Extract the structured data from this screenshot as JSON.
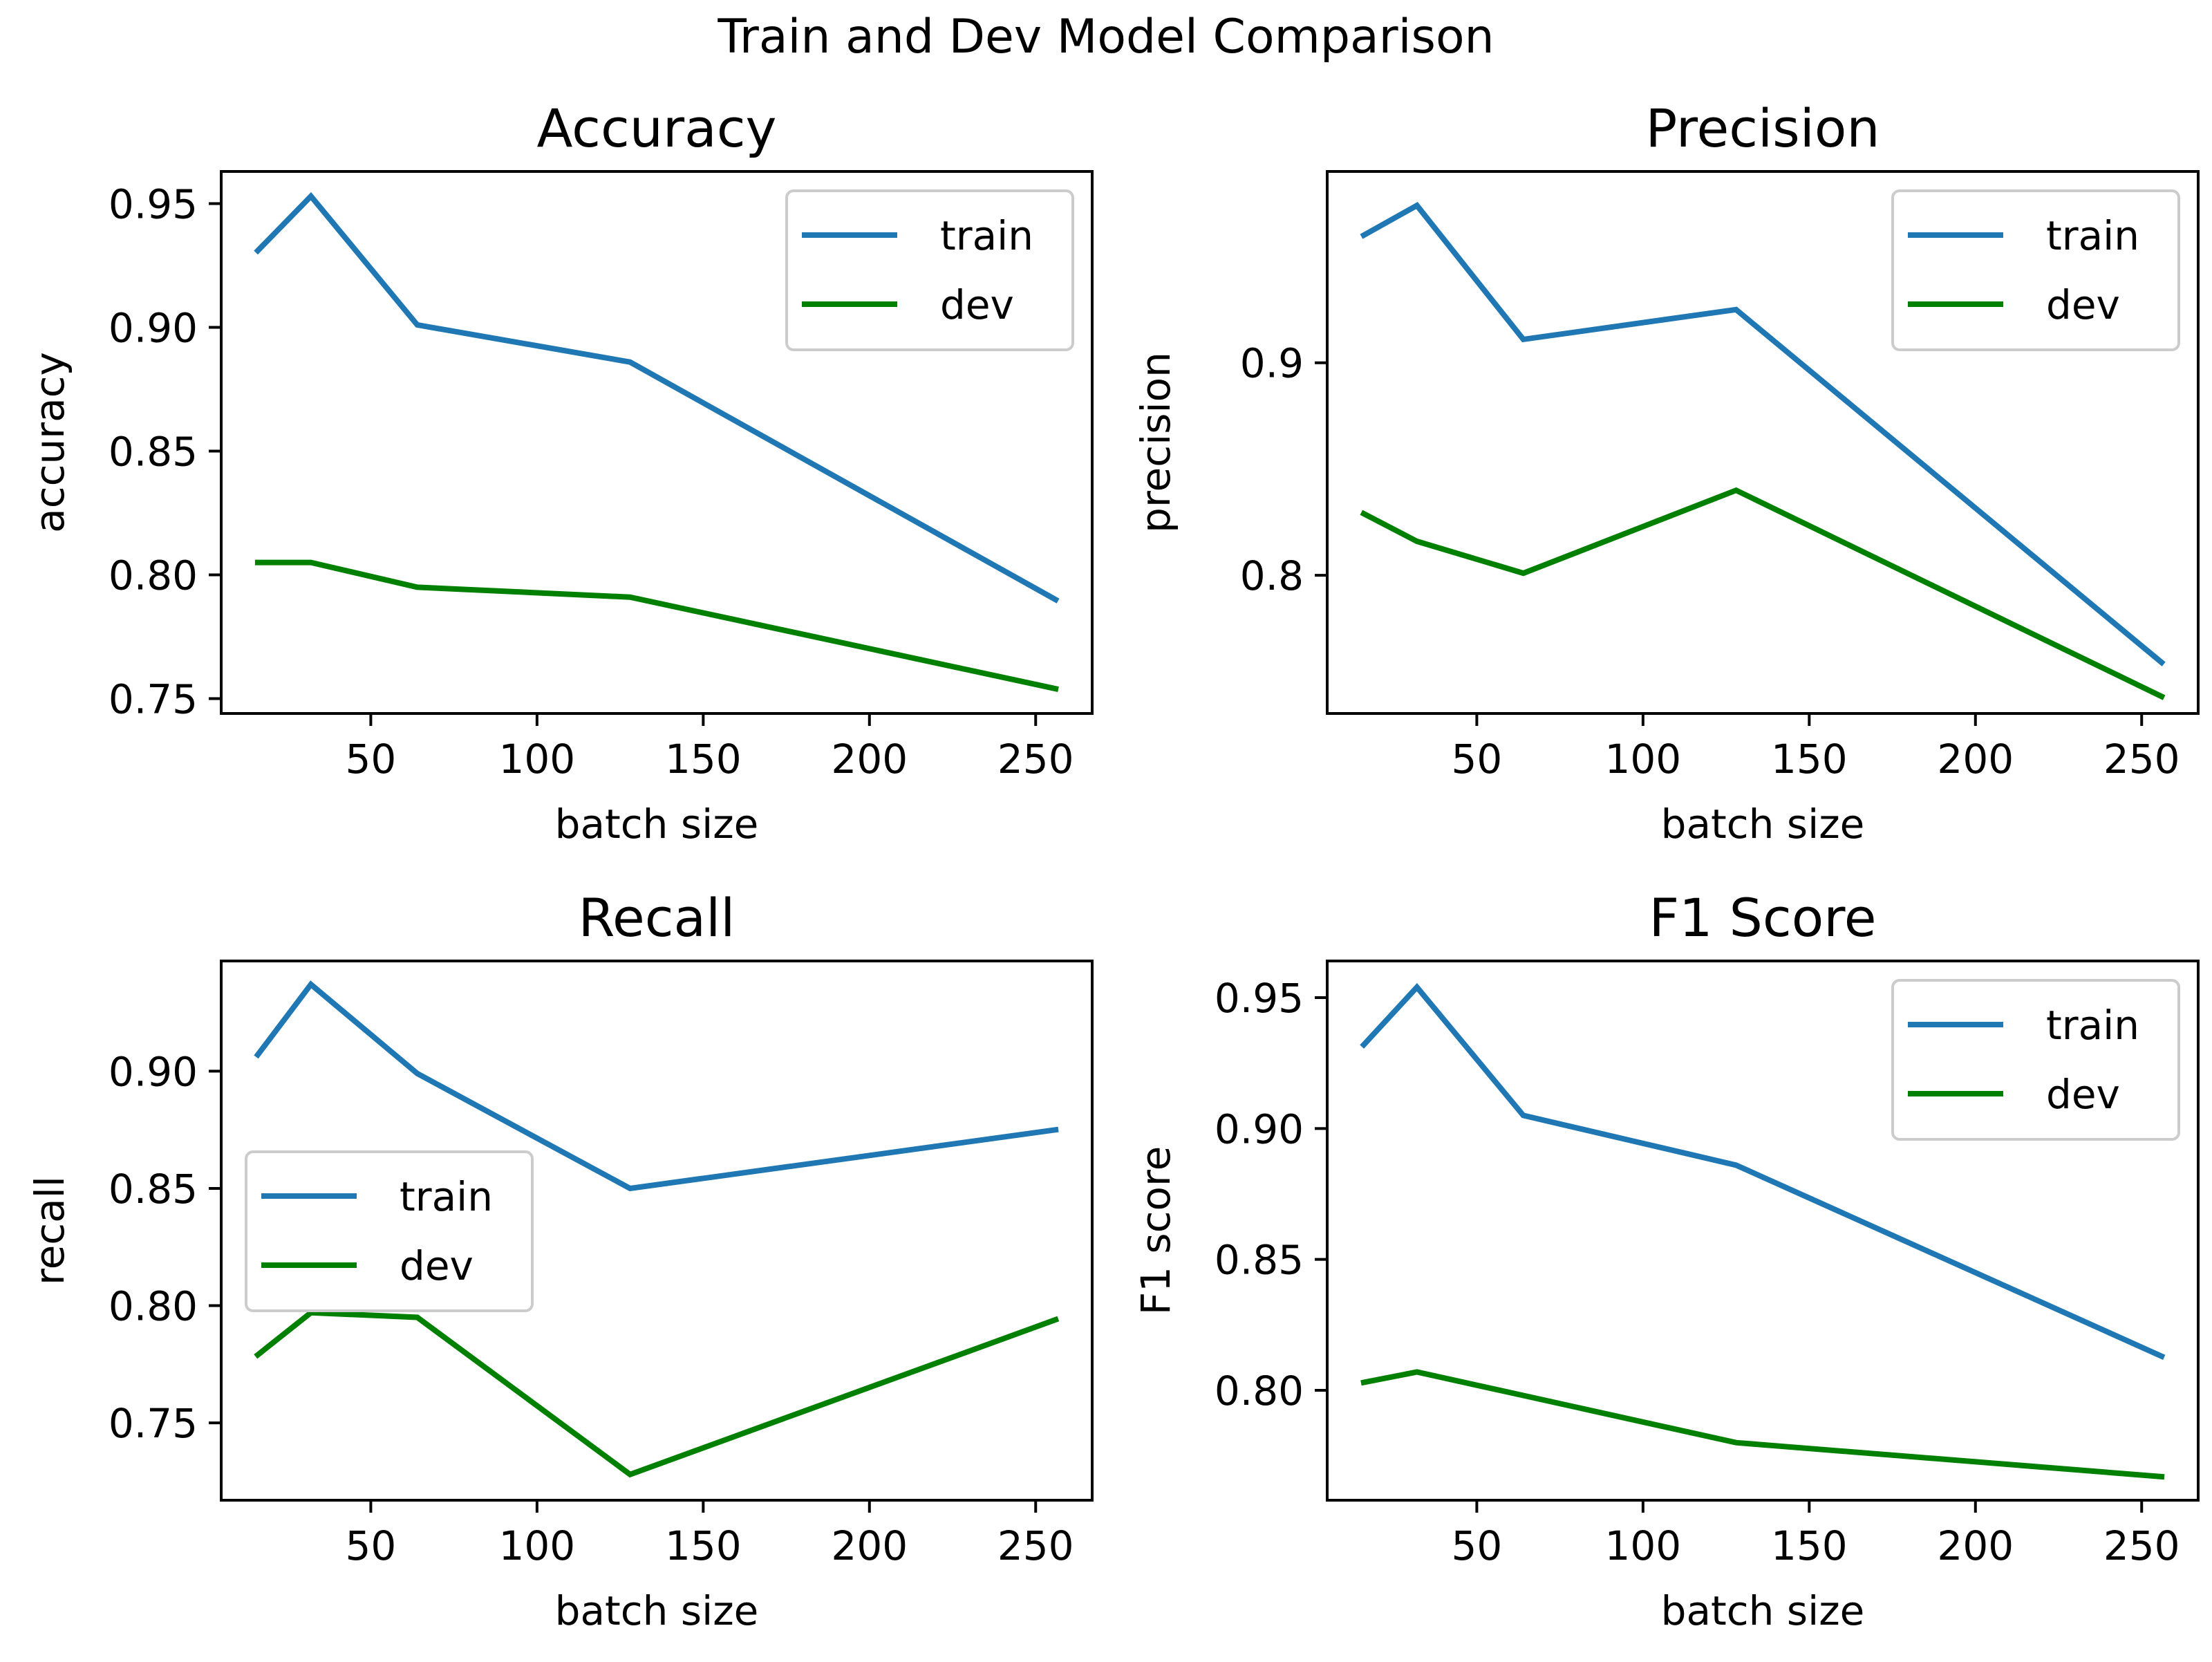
{
  "figure_title": "Train and Dev Model Comparison",
  "chart_data": [
    {
      "type": "line",
      "title": "Accuracy",
      "xlabel": "batch size",
      "ylabel": "accuracy",
      "x": [
        16,
        32,
        64,
        128,
        256
      ],
      "xlim": [
        5,
        267
      ],
      "ylim": [
        0.744,
        0.963
      ],
      "xticks": [
        50,
        100,
        150,
        200,
        250
      ],
      "yticks": [
        0.75,
        0.8,
        0.85,
        0.9,
        0.95
      ],
      "ytick_labels": [
        "0.75",
        "0.80",
        "0.85",
        "0.90",
        "0.95"
      ],
      "legend": "upper right",
      "grid": false,
      "series": [
        {
          "name": "train",
          "color": "#1f77b4",
          "values": [
            0.931,
            0.953,
            0.901,
            0.886,
            0.79
          ]
        },
        {
          "name": "dev",
          "color": "#008000",
          "values": [
            0.805,
            0.805,
            0.795,
            0.791,
            0.754
          ]
        }
      ]
    },
    {
      "type": "line",
      "title": "Precision",
      "xlabel": "batch size",
      "ylabel": "precision",
      "x": [
        16,
        32,
        64,
        128,
        256
      ],
      "xlim": [
        5,
        267
      ],
      "ylim": [
        0.735,
        0.99
      ],
      "xticks": [
        50,
        100,
        150,
        200,
        250
      ],
      "yticks": [
        0.8,
        0.9
      ],
      "ytick_labels": [
        "0.8",
        "0.9"
      ],
      "legend": "upper right",
      "grid": false,
      "series": [
        {
          "name": "train",
          "color": "#1f77b4",
          "values": [
            0.96,
            0.974,
            0.911,
            0.925,
            0.759
          ]
        },
        {
          "name": "dev",
          "color": "#008000",
          "values": [
            0.829,
            0.816,
            0.801,
            0.84,
            0.743
          ]
        }
      ]
    },
    {
      "type": "line",
      "title": "Recall",
      "xlabel": "batch size",
      "ylabel": "recall",
      "x": [
        16,
        32,
        64,
        128,
        256
      ],
      "xlim": [
        5,
        267
      ],
      "ylim": [
        0.717,
        0.947
      ],
      "xticks": [
        50,
        100,
        150,
        200,
        250
      ],
      "yticks": [
        0.75,
        0.8,
        0.85,
        0.9
      ],
      "ytick_labels": [
        "0.75",
        "0.80",
        "0.85",
        "0.90"
      ],
      "legend": "center left",
      "grid": false,
      "series": [
        {
          "name": "train",
          "color": "#1f77b4",
          "values": [
            0.907,
            0.937,
            0.899,
            0.85,
            0.875
          ]
        },
        {
          "name": "dev",
          "color": "#008000",
          "values": [
            0.779,
            0.797,
            0.795,
            0.728,
            0.794
          ]
        }
      ]
    },
    {
      "type": "line",
      "title": "F1 Score",
      "xlabel": "batch size",
      "ylabel": "F1 score",
      "x": [
        16,
        32,
        64,
        128,
        256
      ],
      "xlim": [
        5,
        267
      ],
      "ylim": [
        0.758,
        0.964
      ],
      "xticks": [
        50,
        100,
        150,
        200,
        250
      ],
      "yticks": [
        0.8,
        0.85,
        0.9,
        0.95
      ],
      "ytick_labels": [
        "0.80",
        "0.85",
        "0.90",
        "0.95"
      ],
      "legend": "upper right",
      "grid": false,
      "series": [
        {
          "name": "train",
          "color": "#1f77b4",
          "values": [
            0.932,
            0.954,
            0.905,
            0.886,
            0.813
          ]
        },
        {
          "name": "dev",
          "color": "#008000",
          "values": [
            0.803,
            0.807,
            0.798,
            0.78,
            0.767
          ]
        }
      ]
    }
  ]
}
